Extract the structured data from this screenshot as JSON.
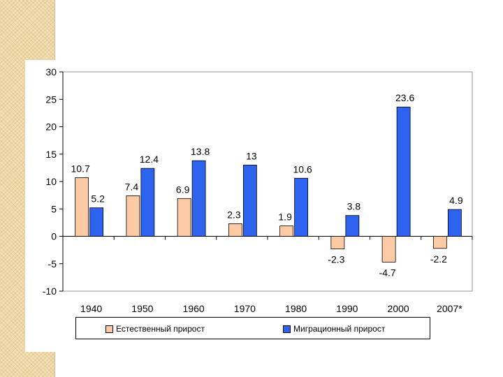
{
  "colors": {
    "natural": "#fccba5",
    "migration": "#2e63f0",
    "axis": "#000000",
    "strip": "#f3dfb4"
  },
  "chart_data": {
    "type": "bar",
    "categories": [
      "1940",
      "1950",
      "1960",
      "1970",
      "1980",
      "1990",
      "2000",
      "2007*"
    ],
    "series": [
      {
        "name": "Естественный прирост",
        "values": [
          10.7,
          7.4,
          6.9,
          2.3,
          1.9,
          -2.3,
          -4.7,
          -2.2
        ]
      },
      {
        "name": "Миграционный прирост",
        "values": [
          5.2,
          12.4,
          13.8,
          13,
          10.6,
          3.8,
          23.6,
          4.9
        ]
      }
    ],
    "data_labels": [
      [
        "10.7",
        "7.4",
        "6.9",
        "2.3",
        "1.9",
        "-2.3",
        "-4.7",
        "-2.2"
      ],
      [
        "5.2",
        "12.4",
        "13.8",
        "13",
        "10.6",
        "3.8",
        "23.6",
        "4.9"
      ]
    ],
    "yticks": [
      "30",
      "25",
      "20",
      "15",
      "10",
      "5",
      "0",
      "-5",
      "-10"
    ],
    "ylim": [
      -10,
      30
    ],
    "grid": false,
    "legend_position": "bottom",
    "title": "",
    "xlabel": "",
    "ylabel": ""
  }
}
